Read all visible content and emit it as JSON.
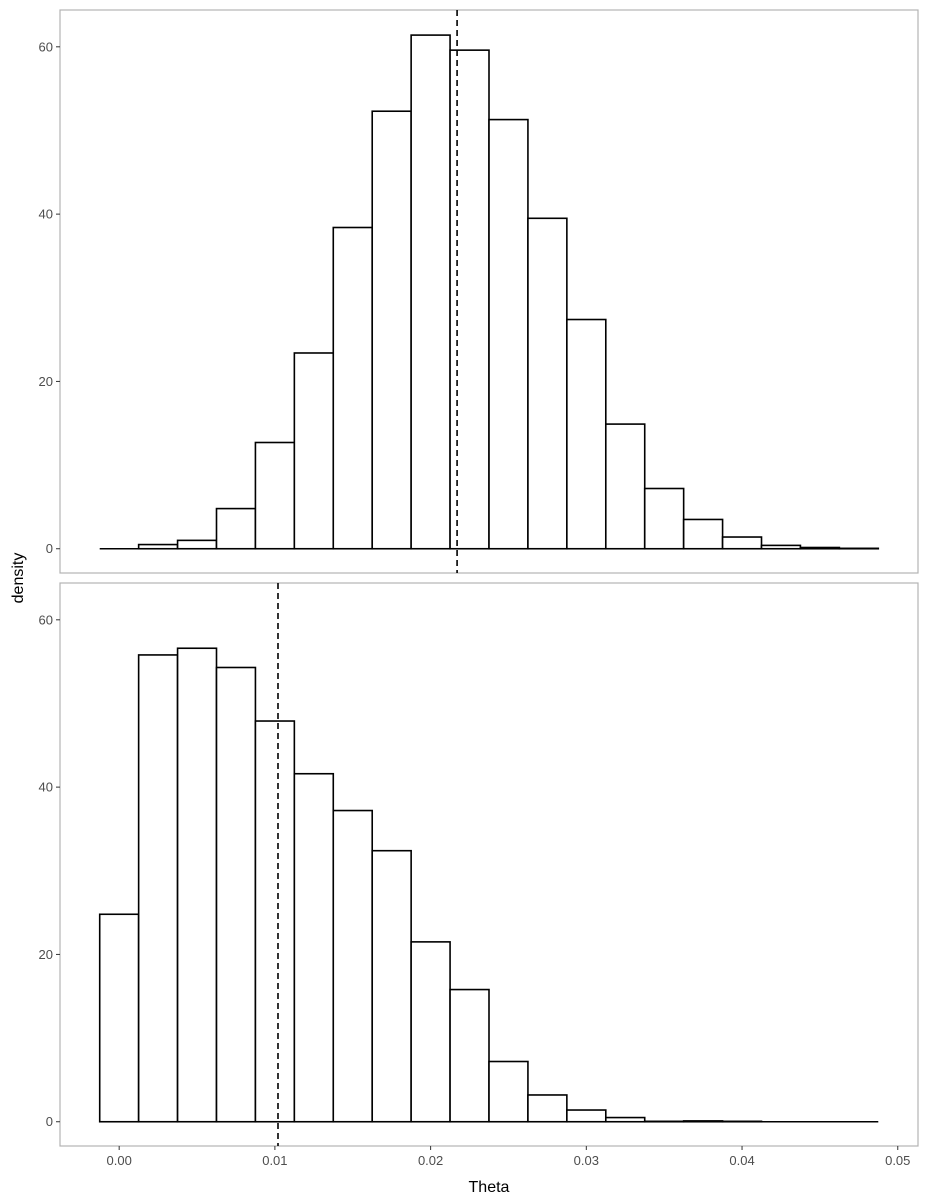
{
  "chart_data": [
    {
      "type": "bar",
      "panel": "top",
      "bin_width": 0.0025,
      "bin_starts": [
        -0.00125,
        0.00125,
        0.00375,
        0.00625,
        0.00875,
        0.01125,
        0.01375,
        0.01625,
        0.01875,
        0.02125,
        0.02375,
        0.02625,
        0.02875,
        0.03125,
        0.03375,
        0.03625,
        0.03875,
        0.04125,
        0.04375,
        0.04625
      ],
      "values": [
        0,
        0.5,
        1.0,
        4.8,
        12.7,
        23.4,
        38.4,
        52.3,
        61.4,
        59.6,
        51.3,
        39.5,
        27.4,
        14.9,
        7.2,
        3.5,
        1.4,
        0.4,
        0.15,
        0.05
      ],
      "reference_line": 0.0217,
      "xlim": [
        -0.0038,
        0.0513
      ],
      "ylim": [
        -2.9,
        64.4
      ],
      "yticks": [
        0,
        20,
        40,
        60
      ],
      "ytick_labels": [
        "0",
        "20",
        "40",
        "60"
      ]
    },
    {
      "type": "bar",
      "panel": "bottom",
      "bin_width": 0.0025,
      "bin_starts": [
        -0.00125,
        0.00125,
        0.00375,
        0.00625,
        0.00875,
        0.01125,
        0.01375,
        0.01625,
        0.01875,
        0.02125,
        0.02375,
        0.02625,
        0.02875,
        0.03125,
        0.03375,
        0.03625,
        0.03875,
        0.04125,
        0.04375,
        0.04625
      ],
      "values": [
        24.8,
        55.8,
        56.6,
        54.3,
        47.9,
        41.6,
        37.2,
        32.4,
        21.5,
        15.8,
        7.2,
        3.2,
        1.4,
        0.5,
        0.05,
        0.1,
        0.05,
        0,
        0,
        0
      ],
      "reference_line": 0.0102,
      "xlim": [
        -0.0038,
        0.0513
      ],
      "ylim": [
        -2.9,
        64.4
      ],
      "yticks": [
        0,
        20,
        40,
        60
      ],
      "ytick_labels": [
        "0",
        "20",
        "40",
        "60"
      ],
      "xticks": [
        0,
        0.01,
        0.02,
        0.03,
        0.04,
        0.05
      ],
      "xtick_labels": [
        "0.00",
        "0.01",
        "0.02",
        "0.03",
        "0.04",
        "0.05"
      ]
    }
  ],
  "labels": {
    "xlabel": "Theta",
    "ylabel": "density"
  }
}
